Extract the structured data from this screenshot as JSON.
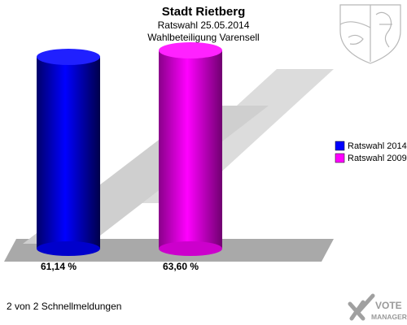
{
  "chart_data": {
    "type": "bar",
    "title": "Stadt Rietberg",
    "subtitle_1": "Ratswahl 25.05.2014",
    "subtitle_2": "Wahlbeteiligung Varensell",
    "categories": [
      "Ratswahl 2014",
      "Ratswahl 2009"
    ],
    "values": [
      61.14,
      63.6
    ],
    "value_labels": [
      "61,14 %",
      "63,60 %"
    ],
    "colors": [
      "#0000ff",
      "#ff00ff"
    ],
    "ylim": [
      0,
      100
    ],
    "grid": false,
    "legend": {
      "position": "right",
      "entries": [
        "Ratswahl 2014",
        "Ratswahl 2009"
      ]
    }
  },
  "footer": {
    "status": "2 von 2 Schnellmeldungen"
  },
  "logo": {
    "brand_line1": "VOTE",
    "brand_line2": "MANAGER",
    "brand_color": "#9a9a9a"
  },
  "crest": {
    "icon": "coat-of-arms-icon"
  }
}
